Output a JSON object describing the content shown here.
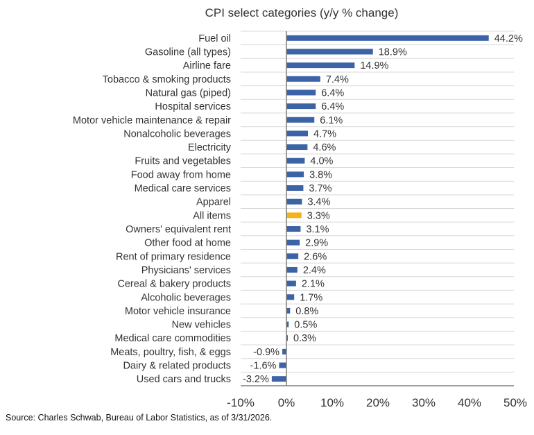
{
  "chart_data": {
    "type": "bar",
    "orientation": "horizontal",
    "title": "CPI select categories (y/y % change)",
    "categories": [
      "Fuel oil",
      "Gasoline (all types)",
      "Airline fare",
      "Tobacco & smoking products",
      "Natural gas (piped)",
      "Hospital services",
      "Motor vehicle maintenance & repair",
      "Nonalcoholic beverages",
      "Electricity",
      "Fruits and vegetables",
      "Food away from home",
      "Medical care services",
      "Apparel",
      "All items",
      "Owners' equivalent rent",
      "Other food at home",
      "Rent of primary residence",
      "Physicians' services",
      "Cereal & bakery products",
      "Alcoholic beverages",
      "Motor vehicle insurance",
      "New vehicles",
      "Medical care commodities",
      "Meats, poultry, fish, & eggs",
      "Dairy & related products",
      "Used cars and trucks"
    ],
    "values": [
      44.2,
      18.9,
      14.9,
      7.4,
      6.4,
      6.4,
      6.1,
      4.7,
      4.6,
      4.0,
      3.8,
      3.7,
      3.4,
      3.3,
      3.1,
      2.9,
      2.6,
      2.4,
      2.1,
      1.7,
      0.8,
      0.5,
      0.3,
      -0.9,
      -1.6,
      -3.2
    ],
    "data_labels": [
      "44.2%",
      "18.9%",
      "14.9%",
      "7.4%",
      "6.4%",
      "6.4%",
      "6.1%",
      "4.7%",
      "4.6%",
      "4.0%",
      "3.8%",
      "3.7%",
      "3.4%",
      "3.3%",
      "3.1%",
      "2.9%",
      "2.6%",
      "2.4%",
      "2.1%",
      "1.7%",
      "0.8%",
      "0.5%",
      "0.3%",
      "-0.9%",
      "-1.6%",
      "-3.2%"
    ],
    "highlight_category": "All items",
    "xlim": [
      -10,
      50
    ],
    "xticks": [
      -10,
      0,
      10,
      20,
      30,
      40,
      50
    ],
    "xtick_labels": [
      "-10%",
      "0%",
      "10%",
      "20%",
      "30%",
      "40%",
      "50%"
    ],
    "xlabel": "",
    "ylabel": "",
    "grid": "horizontal row separators",
    "colors": {
      "bar": "#3B63A6",
      "highlight": "#F5B21A",
      "grid": "#D9D9D9",
      "axis": "#7F7F7F"
    }
  },
  "source": "Source: Charles Schwab, Bureau of Labor Statistics, as of 3/31/2026."
}
